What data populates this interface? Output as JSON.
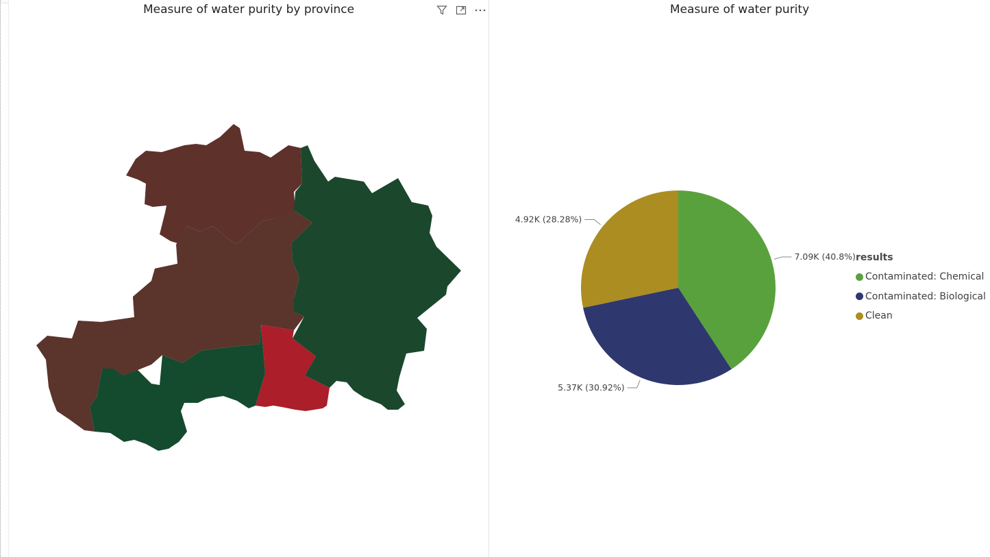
{
  "map_visual": {
    "title": "Measure of water purity by province",
    "icons": [
      "filter-icon",
      "focus-mode-icon",
      "more-options-icon"
    ],
    "region_colors": {
      "dark_brown": "#5e312b",
      "brown": "#5b342c",
      "dark_green": "#1b472d",
      "green": "#144a2e",
      "red": "#ab1e2a"
    }
  },
  "pie_visual": {
    "title": "Measure of water purity",
    "legend": {
      "title": "results",
      "items": [
        {
          "label": "Contaminated: Chemical",
          "color": "#59a13d"
        },
        {
          "label": "Contaminated: Biological",
          "color": "#2e386e"
        },
        {
          "label": "Clean",
          "color": "#ab8d22"
        }
      ]
    }
  },
  "chart_data": {
    "type": "pie",
    "title": "Measure of water purity",
    "slices": [
      {
        "label": "Contaminated: Chemical",
        "value": 7090,
        "data_label": "7.09K (40.8%)",
        "percent": 40.8,
        "color": "#59a13d"
      },
      {
        "label": "Contaminated: Biological",
        "value": 5370,
        "data_label": "5.37K (30.92%)",
        "percent": 30.92,
        "color": "#2e386e"
      },
      {
        "label": "Clean",
        "value": 4920,
        "data_label": "4.92K (28.28%)",
        "percent": 28.28,
        "color": "#ab8d22"
      }
    ],
    "legend_title": "results",
    "legend_position": "right"
  }
}
